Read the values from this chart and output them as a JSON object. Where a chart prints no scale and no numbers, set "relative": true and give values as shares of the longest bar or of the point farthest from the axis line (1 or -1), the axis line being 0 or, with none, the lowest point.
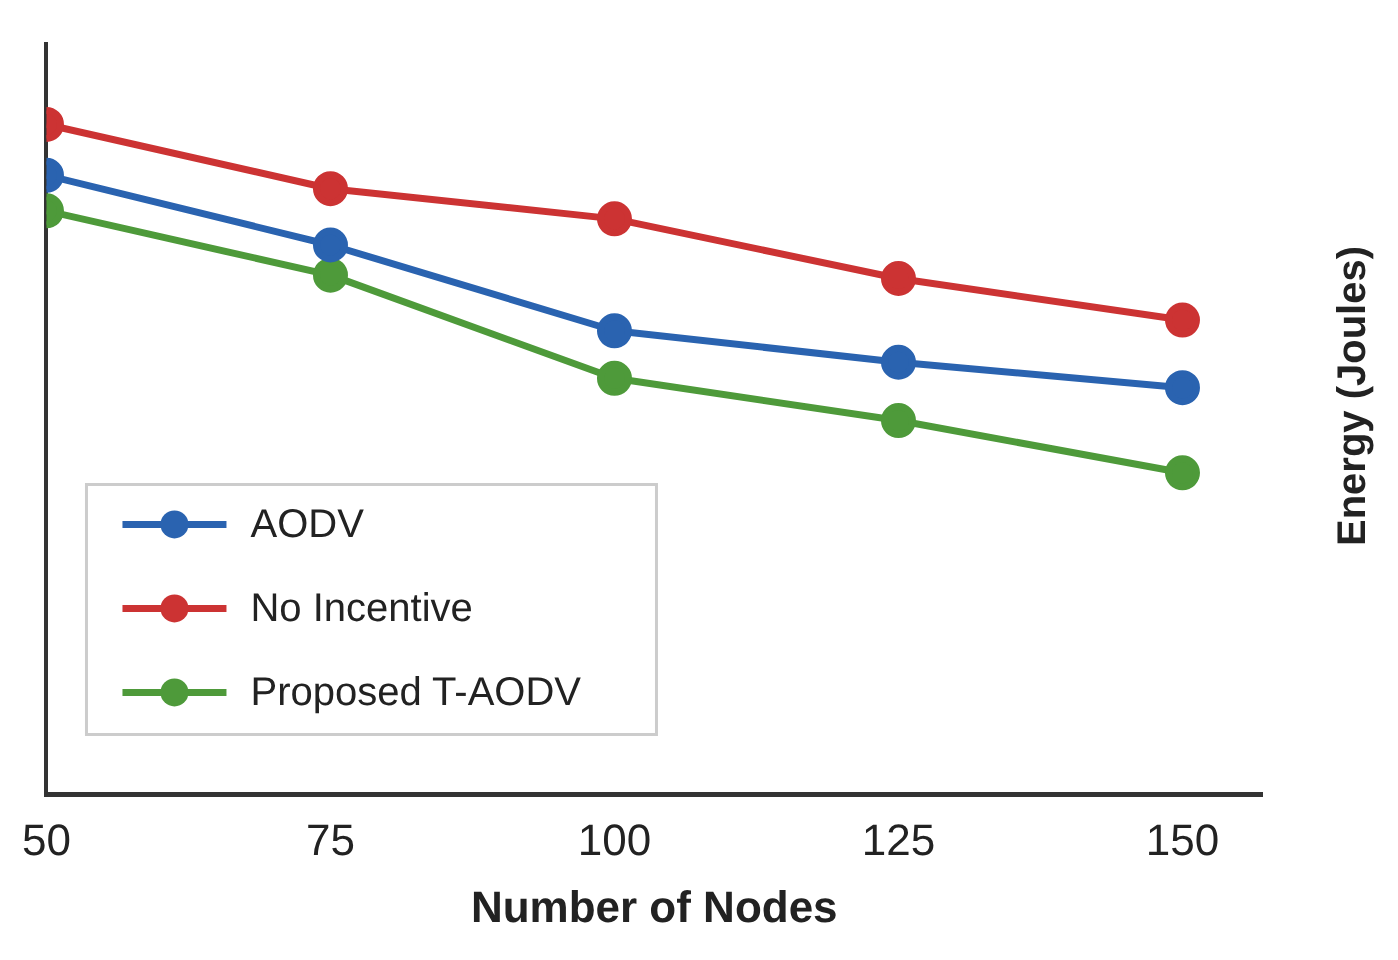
{
  "chart_data": {
    "type": "line",
    "xlabel": "Number of Nodes",
    "annotations": [
      "Energy (Joules)"
    ],
    "x": [
      50,
      75,
      100,
      125,
      150
    ],
    "series": [
      {
        "name": "AODV",
        "color": "#2a63b0",
        "values": [
          0.924,
          0.82,
          0.692,
          0.645,
          0.607
        ]
      },
      {
        "name": "No Incentive",
        "color": "#cc3333",
        "values": [
          1,
          0.904,
          0.859,
          0.77,
          0.708
        ]
      },
      {
        "name": "Proposed T-AODV",
        "color": "#4e9a3a",
        "values": [
          0.871,
          0.775,
          0.621,
          0.558,
          0.48
        ]
      }
    ],
    "relative": true,
    "xlim": [
      50,
      157
    ],
    "xticks": [
      50,
      75,
      100,
      125,
      150
    ],
    "legend": "bottom left",
    "marker": "circle",
    "line_style": "solid"
  }
}
